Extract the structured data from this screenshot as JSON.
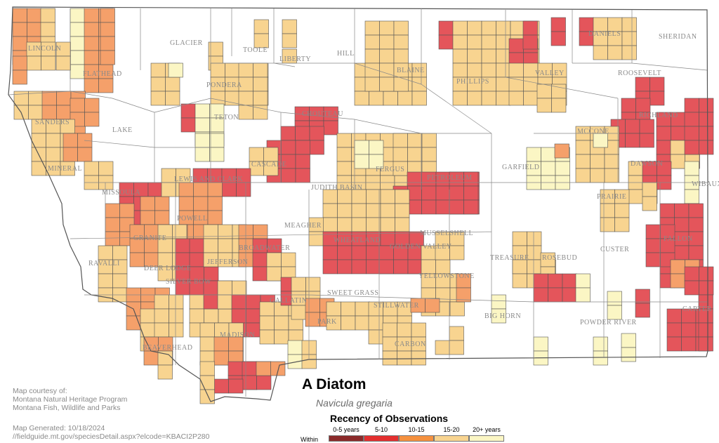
{
  "map": {
    "colors": {
      "c0": "#8b2a2a",
      "c1": "#e4555b",
      "c2": "#f5a06a",
      "c3": "#f8d490",
      "c4": "#fbf6c4",
      "border": "#555555",
      "county_border": "#777777"
    },
    "county_labels": [
      "LINCOLN",
      "FLATHEAD",
      "GLACIER",
      "TOOLE",
      "LIBERTY",
      "HILL",
      "BLAINE",
      "PHILLIPS",
      "VALLEY",
      "DANIELS",
      "SHERIDAN",
      "ROOSEVELT",
      "RICHLAND",
      "PONDERA",
      "TETON",
      "LAKE",
      "SANDERS",
      "MINERAL",
      "CHOUTEAU",
      "MCCONE",
      "DAWSON",
      "WIBAUX",
      "GARFIELD",
      "PRAIRIE",
      "FALLON",
      "CASCADE",
      "JUDITH BASIN",
      "FERGUS",
      "PETROLEUM",
      "LEWIS AND CLARK",
      "MISSOULA",
      "POWELL",
      "GRANITE",
      "MEAGHER",
      "BROADWATER",
      "WHEATLAND",
      "GOLDEN VALLEY",
      "MUSSELSHELL",
      "RAVALLI",
      "DEER LODGE",
      "JEFFERSON",
      "SILVER BOW",
      "TREASURE",
      "ROSEBUD",
      "CUSTER",
      "YELLOWSTONE",
      "SWEET GRASS",
      "STILLWATER",
      "GALLATIN",
      "PARK",
      "BIG HORN",
      "POWDER RIVER",
      "CARTER",
      "MADISON",
      "BEAVERHEAD",
      "CARBON"
    ]
  },
  "title": "A Diatom",
  "scientific_name": "Navicula gregaria",
  "credit": {
    "line1": "Map courtesy of:",
    "line2": "Montana Natural Heritage Program",
    "line3": "Montana Fish, Wildlife and Parks",
    "generated": "Map Generated: 10/18/2024",
    "url": "//fieldguide.mt.gov/speciesDetail.aspx?elcode=KBACI2P280"
  },
  "legend": {
    "title": "Recency of Observations",
    "within_label": "Within",
    "items": [
      {
        "label": "0-5 years",
        "color": "#8b2a2a"
      },
      {
        "label": "5-10",
        "color": "#e32f2f"
      },
      {
        "label": "10-15",
        "color": "#f5913f"
      },
      {
        "label": "15-20",
        "color": "#f8d490"
      },
      {
        "label": "20+ years",
        "color": "#fbf6c4"
      }
    ]
  }
}
